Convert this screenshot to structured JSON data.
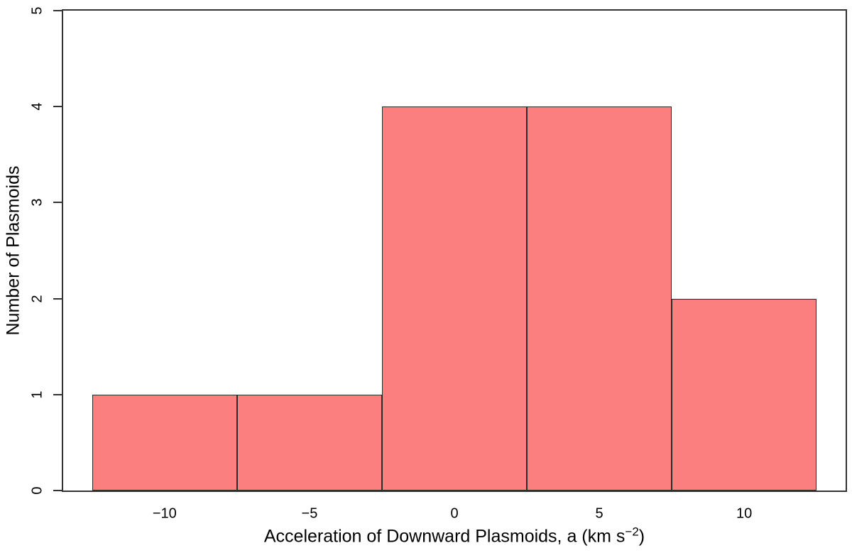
{
  "chart_data": {
    "type": "bar",
    "subtype": "histogram",
    "title": "",
    "xlabel": "Acceleration of Downward Plasmoids, a (km s^-2)",
    "xlabel_parts": {
      "base": "Acceleration of Downward Plasmoids, a (km s",
      "superscript": "−2",
      "suffix": ")"
    },
    "ylabel": "Number of Plasmoids",
    "bins": [
      {
        "start": -12.5,
        "end": -7.5,
        "count": 1
      },
      {
        "start": -7.5,
        "end": -2.5,
        "count": 1
      },
      {
        "start": -2.5,
        "end": 2.5,
        "count": 4
      },
      {
        "start": 2.5,
        "end": 7.5,
        "count": 4
      },
      {
        "start": 7.5,
        "end": 12.5,
        "count": 2
      }
    ],
    "x_ticks": [
      {
        "value": -10,
        "label": "−10"
      },
      {
        "value": -5,
        "label": "−5"
      },
      {
        "value": 0,
        "label": "0"
      },
      {
        "value": 5,
        "label": "5"
      },
      {
        "value": 10,
        "label": "10"
      }
    ],
    "y_ticks": [
      {
        "value": 0,
        "label": "0"
      },
      {
        "value": 1,
        "label": "1"
      },
      {
        "value": 2,
        "label": "2"
      },
      {
        "value": 3,
        "label": "3"
      },
      {
        "value": 4,
        "label": "4"
      },
      {
        "value": 5,
        "label": "5"
      }
    ],
    "xlim": [
      -13.5,
      13.5
    ],
    "ylim": [
      0,
      5
    ],
    "grid": false,
    "legend_position": "none",
    "colors": {
      "bar_fill": "#FC7F7F",
      "bar_border": "#2B2B2B",
      "axis": "#333333",
      "text": "#000000",
      "background": "#FFFFFF"
    }
  }
}
